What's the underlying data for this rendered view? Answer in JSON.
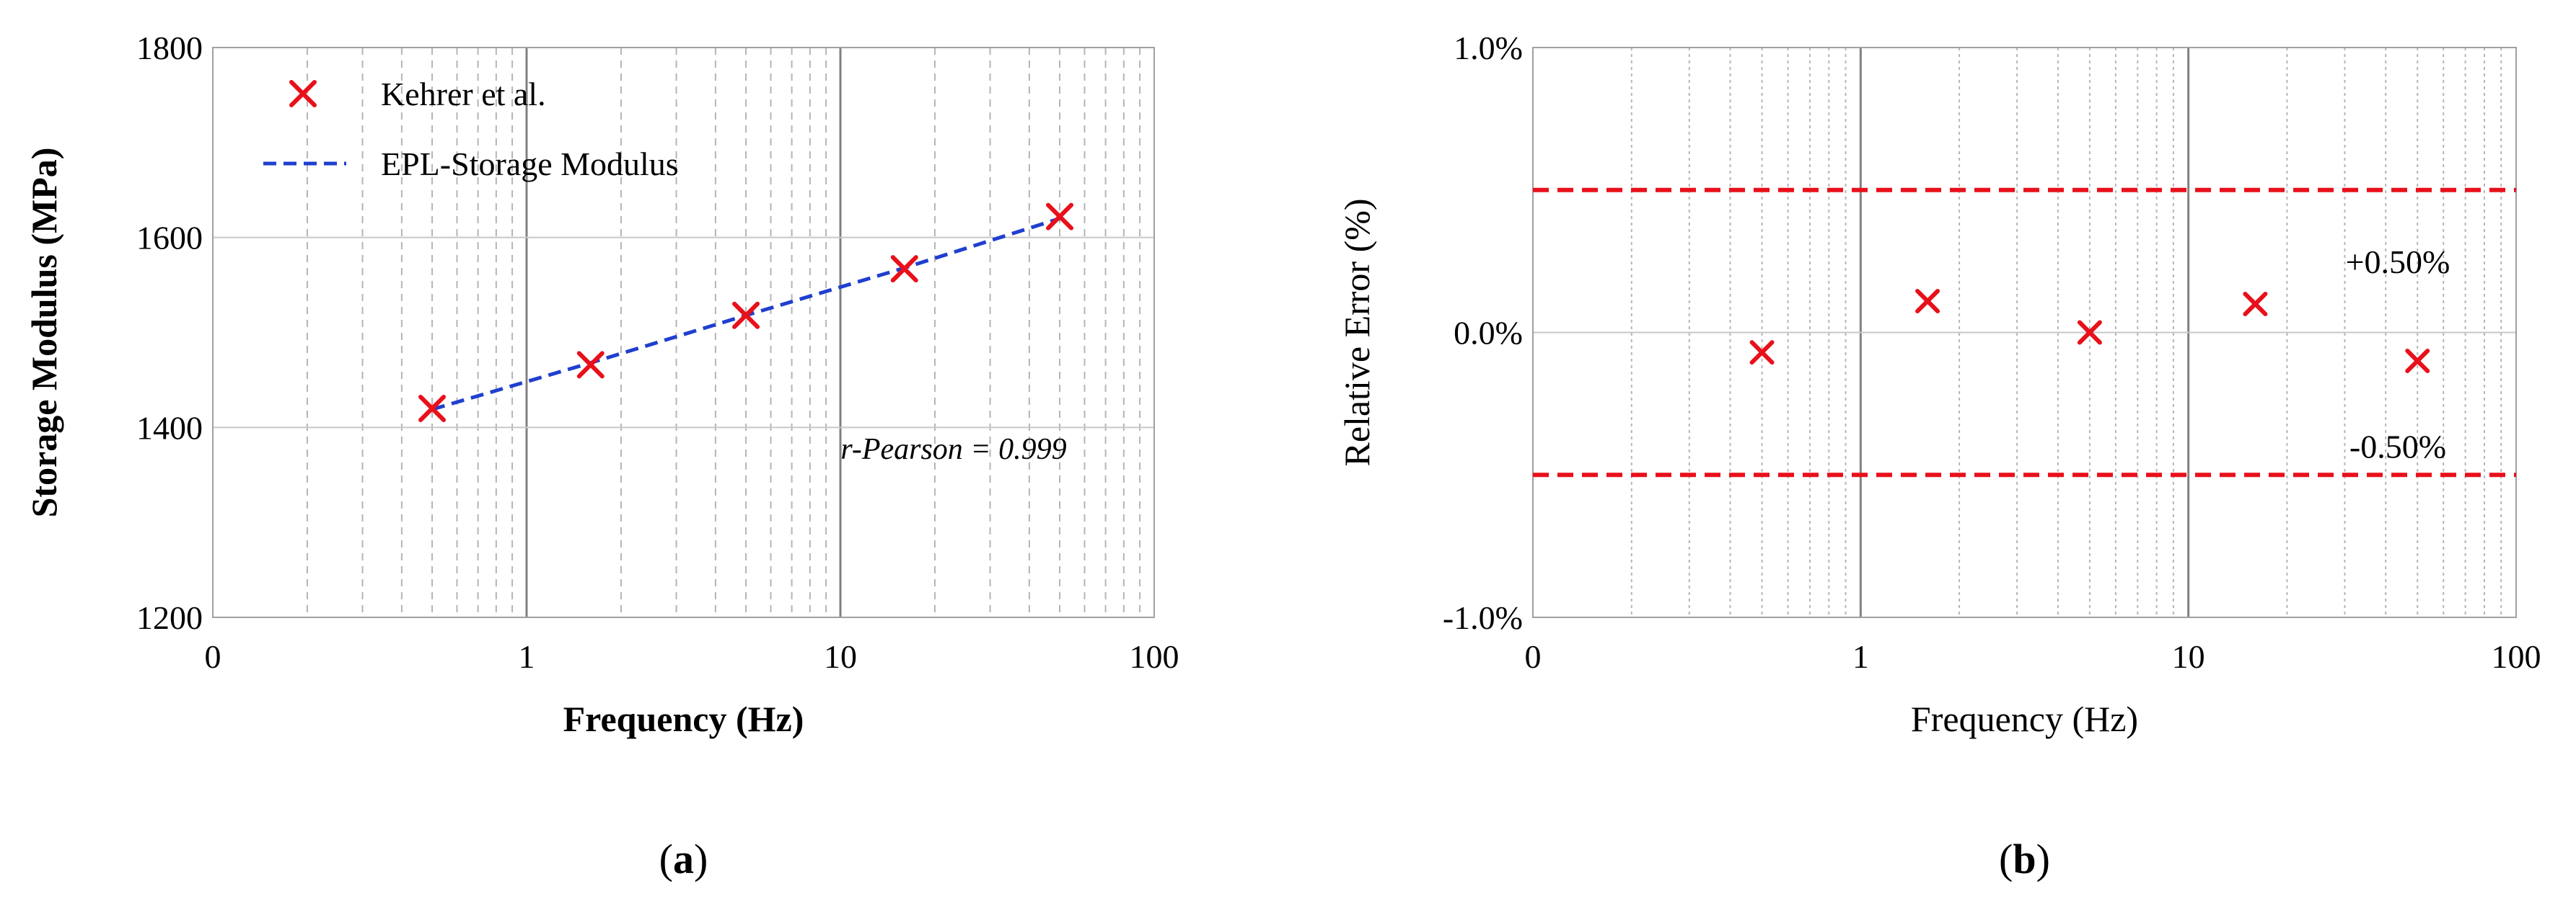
{
  "figure": {
    "panels": [
      {
        "caption_open": "(",
        "caption_letter": "a",
        "caption_close": ")"
      },
      {
        "caption_open": "(",
        "caption_letter": "b",
        "caption_close": ")"
      }
    ]
  },
  "chart_data": [
    {
      "type": "scatter",
      "xlabel": "Frequency (Hz)",
      "ylabel": "Storage Modulus (MPa)",
      "x_scale": "log",
      "x_tick_labels": [
        "0",
        "1",
        "10",
        "100"
      ],
      "y_ticks": [
        1200,
        1400,
        1600,
        1800
      ],
      "ylim": [
        1200,
        1800
      ],
      "grid": "major solid, minor dashed (vertical)",
      "legend": {
        "position": "top-left",
        "entries": [
          "Kehrer et al.",
          "EPL-Storage Modulus"
        ]
      },
      "series": [
        {
          "name": "Kehrer et al.",
          "marker": "x",
          "color": "#e8101a",
          "x": [
            0.5,
            1.6,
            5,
            16,
            50
          ],
          "y": [
            1420,
            1466,
            1518,
            1567,
            1622
          ]
        },
        {
          "name": "EPL-Storage Modulus",
          "line": "dashed",
          "color": "#1f3fcf",
          "x": [
            0.5,
            1.6,
            5,
            16,
            50
          ],
          "y": [
            1419,
            1468,
            1518,
            1568,
            1620
          ]
        }
      ],
      "annotation": "r-Pearson = 0.999"
    },
    {
      "type": "scatter",
      "xlabel": "Frequency (Hz)",
      "ylabel": "Relative Error (%)",
      "x_scale": "log",
      "x_tick_labels": [
        "0",
        "1",
        "10",
        "100"
      ],
      "y_ticks": [
        -1.0,
        0.0,
        1.0
      ],
      "y_tick_labels": [
        "-1.0%",
        "0.0%",
        "1.0%"
      ],
      "ylim": [
        -1.0,
        1.0
      ],
      "grid": "major solid, minor dotted (vertical)",
      "series": [
        {
          "marker": "x",
          "color": "#e8101a",
          "x": [
            0.5,
            1.6,
            5,
            16,
            50
          ],
          "y": [
            -0.07,
            0.11,
            0.0,
            0.1,
            -0.1
          ]
        }
      ],
      "reference_lines": [
        {
          "y": 0.5,
          "label": "+0.50%",
          "color": "#e8101a",
          "style": "dashed"
        },
        {
          "y": -0.5,
          "label": "-0.50%",
          "color": "#e8101a",
          "style": "dashed"
        }
      ]
    }
  ]
}
